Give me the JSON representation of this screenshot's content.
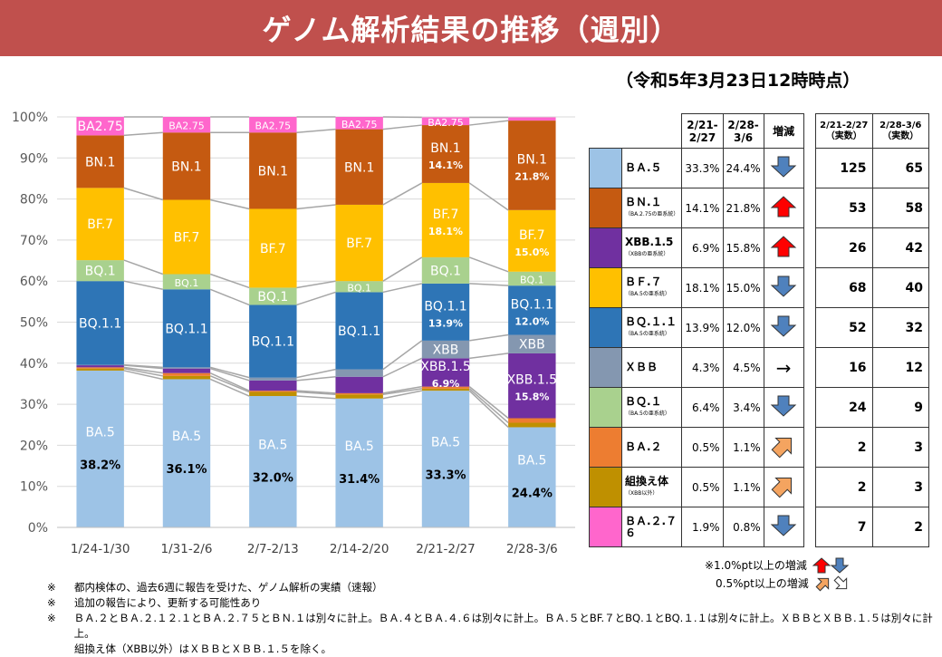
{
  "banner": {
    "title": "ゲノム解析結果の推移（週別）"
  },
  "asof": "（令和5年3月23日12時時点）",
  "chart_data": {
    "type": "bar",
    "stacked": true,
    "percent": true,
    "categories": [
      "1/24-1/30",
      "1/31-2/6",
      "2/7-2/13",
      "2/14-2/20",
      "2/21-2/27",
      "2/28-3/6"
    ],
    "yticks": [
      "0%",
      "10%",
      "20%",
      "30%",
      "40%",
      "50%",
      "60%",
      "70%",
      "80%",
      "90%",
      "100%"
    ],
    "ylim": [
      0,
      100
    ],
    "grid": true,
    "series": [
      {
        "name": "BA.5",
        "color": "#9dc3e6",
        "values": [
          38.2,
          36.1,
          32.0,
          31.4,
          33.3,
          24.4
        ],
        "labels": [
          "BA.5",
          "BA.5",
          "BA.5",
          "BA.5",
          "BA.5",
          "BA.5"
        ],
        "pct": [
          "38.2%",
          "36.1%",
          "32.0%",
          "31.4%",
          "33.3%",
          "24.4%"
        ]
      },
      {
        "name": "組換え体",
        "color": "#bf9000",
        "values": [
          0.5,
          0.8,
          1.0,
          1.0,
          0.5,
          1.1
        ]
      },
      {
        "name": "BA.2",
        "color": "#ed7d31",
        "values": [
          0.3,
          0.7,
          0.3,
          0.3,
          0.5,
          1.1
        ]
      },
      {
        "name": "XBB.1.5",
        "color": "#7030a0",
        "values": [
          0.5,
          1.1,
          2.5,
          4.0,
          6.9,
          15.8
        ],
        "labels": [
          "",
          "",
          "",
          "",
          "XBB.1.5",
          "XBB.1.5"
        ],
        "pct": [
          "",
          "",
          "",
          "",
          "6.9%",
          "15.8%"
        ]
      },
      {
        "name": "XBB",
        "color": "#8497b0",
        "values": [
          0.1,
          0.3,
          0.7,
          1.8,
          4.3,
          4.5
        ],
        "labels": [
          "",
          "",
          "",
          "",
          "XBB",
          "XBB"
        ]
      },
      {
        "name": "BQ.1.1",
        "color": "#2e75b6",
        "values": [
          20.4,
          19.0,
          17.7,
          18.8,
          13.9,
          12.0
        ],
        "labels": [
          "BQ.1.1",
          "BQ.1.1",
          "BQ.1.1",
          "BQ.1.1",
          "BQ.1.1",
          "BQ.1.1"
        ],
        "pct": [
          "",
          "",
          "",
          "",
          "13.9%",
          "12.0%"
        ]
      },
      {
        "name": "BQ.1",
        "color": "#a9d18e",
        "values": [
          5.1,
          3.7,
          4.2,
          2.7,
          6.4,
          3.4
        ],
        "labels": [
          "BQ.1",
          "BQ.1",
          "BQ.1",
          "BQ.1",
          "BQ.1",
          "BQ.1"
        ]
      },
      {
        "name": "BF.7",
        "color": "#ffc000",
        "values": [
          17.6,
          18.1,
          19.2,
          18.6,
          18.1,
          15.0
        ],
        "labels": [
          "BF.7",
          "BF.7",
          "BF.7",
          "BF.7",
          "BF.7",
          "BF.7"
        ],
        "pct": [
          "",
          "",
          "",
          "",
          "18.1%",
          "15.0%"
        ]
      },
      {
        "name": "BN.1",
        "color": "#c55a11",
        "values": [
          12.8,
          16.4,
          18.6,
          18.4,
          14.1,
          21.8
        ],
        "labels": [
          "BN.1",
          "BN.1",
          "BN.1",
          "BN.1",
          "BN.1",
          "BN.1"
        ],
        "pct": [
          "",
          "",
          "",
          "",
          "14.1%",
          "21.8%"
        ]
      },
      {
        "name": "BA.2.75",
        "color": "#ff66cc",
        "values": [
          4.5,
          3.8,
          3.8,
          3.0,
          1.9,
          0.8
        ],
        "labels": [
          "BA2.75",
          "BA2.75",
          "BA2.75",
          "BA2.75",
          "BA2.75",
          ""
        ]
      }
    ]
  },
  "table": {
    "headers": {
      "c1": "2/21-\n2/27",
      "c2": "2/28-\n3/6",
      "c3": "増減"
    },
    "rows": [
      {
        "name": "ＢＡ.５",
        "sub": "",
        "color": "#9dc3e6",
        "p1": "33.3%",
        "p2": "24.4%",
        "trend": "down"
      },
      {
        "name": "ＢＮ.１",
        "sub": "（BA.2.75の亜系統）",
        "color": "#c55a11",
        "p1": "14.1%",
        "p2": "21.8%",
        "trend": "up-big"
      },
      {
        "name": "XBB.1.5",
        "sub": "（XBBの亜系統）",
        "color": "#7030a0",
        "p1": "6.9%",
        "p2": "15.8%",
        "trend": "up-big"
      },
      {
        "name": "ＢＦ.７",
        "sub": "（BA.5の亜系統）",
        "color": "#ffc000",
        "p1": "18.1%",
        "p2": "15.0%",
        "trend": "down"
      },
      {
        "name": "ＢＱ.１.１",
        "sub": "（BA.5の亜系統）",
        "color": "#2e75b6",
        "p1": "13.9%",
        "p2": "12.0%",
        "trend": "down"
      },
      {
        "name": "ＸＢＢ",
        "sub": "",
        "color": "#8497b0",
        "p1": "4.3%",
        "p2": "4.5%",
        "trend": "flat"
      },
      {
        "name": "ＢＱ.１",
        "sub": "（BA.5の亜系統）",
        "color": "#a9d18e",
        "p1": "6.4%",
        "p2": "3.4%",
        "trend": "down"
      },
      {
        "name": "ＢＡ.２",
        "sub": "",
        "color": "#ed7d31",
        "p1": "0.5%",
        "p2": "1.1%",
        "trend": "up-small"
      },
      {
        "name": "組換え体",
        "sub": "（XBB以外）",
        "color": "#bf9000",
        "p1": "0.5%",
        "p2": "1.1%",
        "trend": "up-small"
      },
      {
        "name": "ＢＡ.２.７６",
        "sub": "",
        "color": "#ff66cc",
        "p1": "1.9%",
        "p2": "0.8%",
        "trend": "down"
      }
    ]
  },
  "raw": {
    "headers": {
      "c1": "2/21-2/27\n（実数）",
      "c2": "2/28-3/6\n（実数）"
    },
    "rows": [
      [
        "125",
        "65"
      ],
      [
        "53",
        "58"
      ],
      [
        "26",
        "42"
      ],
      [
        "68",
        "40"
      ],
      [
        "52",
        "32"
      ],
      [
        "16",
        "12"
      ],
      [
        "24",
        "9"
      ],
      [
        "2",
        "3"
      ],
      [
        "2",
        "3"
      ],
      [
        "7",
        "2"
      ]
    ]
  },
  "legend_note": {
    "big": "※1.0%pt以上の増減",
    "small": "0.5%pt以上の増減"
  },
  "notes": [
    {
      "mark": "※",
      "text": "都内検体の、過去6週に報告を受けた、ゲノム解析の実績（速報）"
    },
    {
      "mark": "※",
      "text": "追加の報告により、更新する可能性あり"
    },
    {
      "mark": "※",
      "text": "ＢＡ.２とＢＡ.２.１２.１とＢＡ.２.７５とＢＮ.１は別々に計上。ＢＡ.４とＢＡ.４.６は別々に計上。ＢＡ.５とBF.７とBQ.１とBQ.１.１は別々に計上。ＸＢＢとＸＢＢ.１.５は別々に計上。"
    },
    {
      "mark": "",
      "text": "組換え体（XBB以外）はＸＢＢとＸＢＢ.１.５を除く。"
    }
  ]
}
